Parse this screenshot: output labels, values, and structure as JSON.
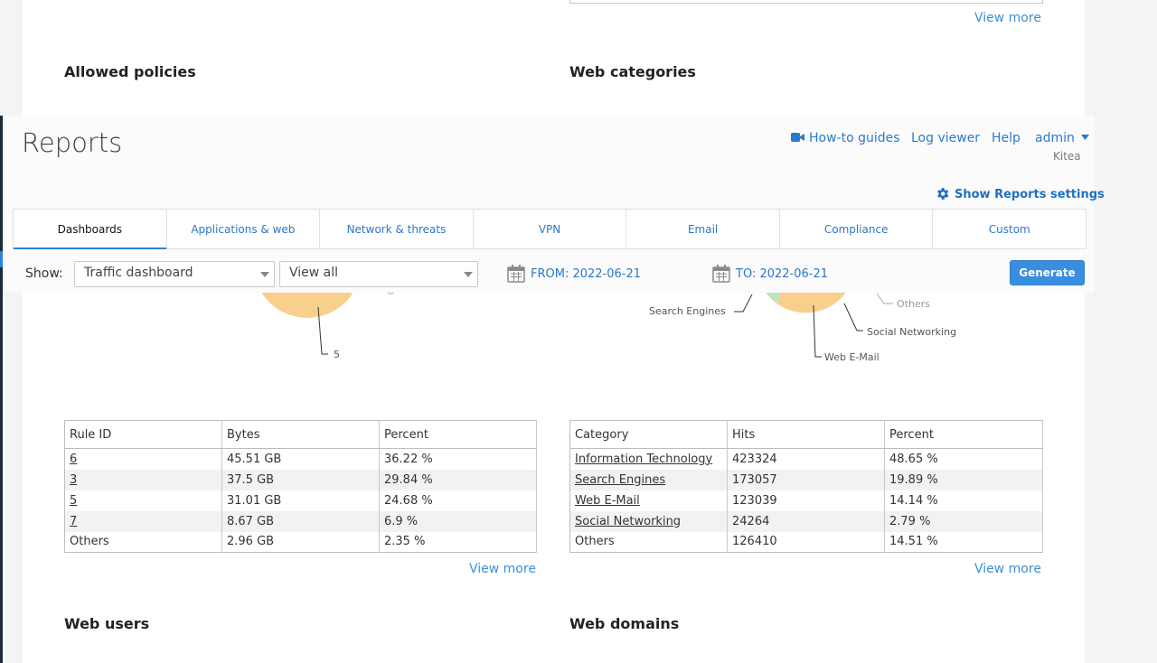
{
  "background_sections": {
    "top_view_more": "View more",
    "allowed_policies_title": "Allowed policies",
    "web_categories_title": "Web categories",
    "web_users_title": "Web users",
    "web_domains_title": "Web domains"
  },
  "policies_chart": {
    "label_visible": "5"
  },
  "categories_chart": {
    "labels": [
      "Search Engines",
      "Others",
      "Social Networking",
      "Web E-Mail"
    ]
  },
  "policies_table": {
    "headers": [
      "Rule ID",
      "Bytes",
      "Percent"
    ],
    "rows": [
      {
        "id": "6",
        "bytes": "45.51 GB",
        "percent": "36.22 %",
        "link": true
      },
      {
        "id": "3",
        "bytes": "37.5 GB",
        "percent": "29.84 %",
        "link": true
      },
      {
        "id": "5",
        "bytes": "31.01 GB",
        "percent": "24.68 %",
        "link": true
      },
      {
        "id": "7",
        "bytes": "8.67 GB",
        "percent": "6.9 %",
        "link": true
      },
      {
        "id": "Others",
        "bytes": "2.96 GB",
        "percent": "2.35 %",
        "link": false
      }
    ],
    "view_more": "View more"
  },
  "categories_table": {
    "headers": [
      "Category",
      "Hits",
      "Percent"
    ],
    "rows": [
      {
        "category": "Information Technology",
        "hits": "423324",
        "percent": "48.65 %",
        "link": true
      },
      {
        "category": "Search Engines",
        "hits": "173057",
        "percent": "19.89 %",
        "link": true
      },
      {
        "category": "Web E-Mail",
        "hits": "123039",
        "percent": "14.14 %",
        "link": true
      },
      {
        "category": "Social Networking",
        "hits": "24264",
        "percent": "2.79 %",
        "link": true
      },
      {
        "category": "Others",
        "hits": "126410",
        "percent": "14.51 %",
        "link": false
      }
    ],
    "view_more": "View more"
  },
  "header": {
    "title": "Reports",
    "links": {
      "how_to": "How-to guides",
      "log_viewer": "Log viewer",
      "help": "Help",
      "admin": "admin"
    },
    "subtext": "Kitea",
    "settings": "Show Reports settings"
  },
  "tabs": [
    "Dashboards",
    "Applications & web",
    "Network & threats",
    "VPN",
    "Email",
    "Compliance",
    "Custom"
  ],
  "filters": {
    "show_label": "Show:",
    "dashboard_select": "Traffic dashboard",
    "view_select": "View all",
    "from": "FROM: 2022-06-21",
    "to": "TO: 2022-06-21",
    "generate": "Generate"
  },
  "colors": {
    "accent": "#2a83d8",
    "link": "#2b78c6",
    "generate_button": "#3a8ee0"
  }
}
